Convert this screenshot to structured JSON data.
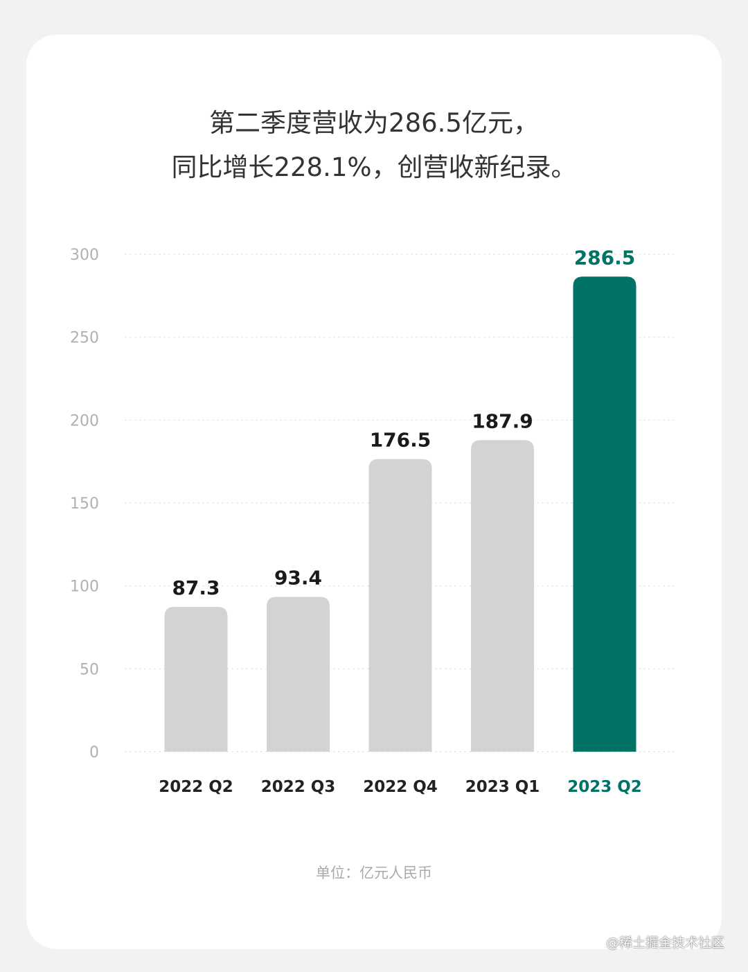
{
  "title_lines": [
    "第二季度营收为286.5亿元，",
    "同比增长228.1%，创营收新纪录。"
  ],
  "unit_text": "单位：亿元人民币",
  "watermark": "@稀土掘金技术社区",
  "colors": {
    "background": "#f2f2f2",
    "card": "#ffffff",
    "bar_default": "#d3d3d3",
    "bar_highlight": "#007266",
    "label_default": "#1a1a1a",
    "label_highlight": "#007266",
    "tick": "#b0b0b0",
    "grid": "#e3e3e3"
  },
  "chart_data": {
    "type": "bar",
    "categories": [
      "2022 Q2",
      "2022 Q3",
      "2022 Q4",
      "2023 Q1",
      "2023 Q2"
    ],
    "values": [
      87.3,
      93.4,
      176.5,
      187.9,
      286.5
    ],
    "value_labels": [
      "87.3",
      "93.4",
      "176.5",
      "187.9",
      "286.5"
    ],
    "highlight_index": 4,
    "ylim": [
      0,
      300
    ],
    "yticks": [
      0,
      50,
      100,
      150,
      200,
      250,
      300
    ],
    "grid": true,
    "title": "第二季度营收为286.5亿元，同比增长228.1%，创营收新纪录。",
    "xlabel": "",
    "ylabel": ""
  }
}
